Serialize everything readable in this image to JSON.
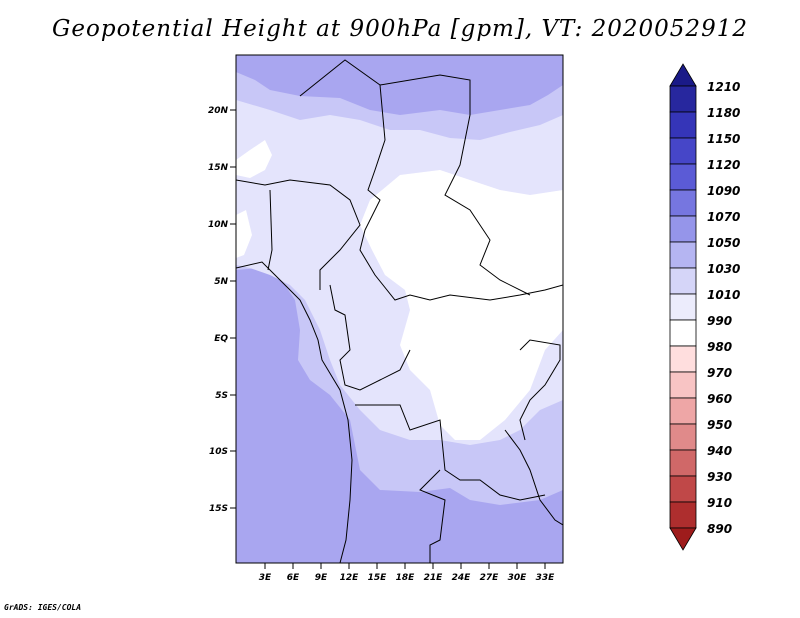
{
  "title": "Geopotential Height at 900hPa [gpm], VT: 2020052912",
  "map": {
    "lat_labels": [
      "20N",
      "15N",
      "10N",
      "5N",
      "EQ",
      "5S",
      "10S",
      "15S"
    ],
    "lon_labels": [
      "3E",
      "6E",
      "9E",
      "12E",
      "15E",
      "18E",
      "21E",
      "24E",
      "27E",
      "30E",
      "33E"
    ],
    "field_colors": {
      "c1050": "#a9a6f0",
      "c1030": "#c8c7f7",
      "c1010": "#e4e4fc",
      "c990": "#ffffff"
    }
  },
  "colorbar": {
    "levels": [
      "1210",
      "1180",
      "1150",
      "1120",
      "1090",
      "1070",
      "1050",
      "1030",
      "1010",
      "990",
      "980",
      "970",
      "960",
      "950",
      "940",
      "930",
      "910",
      "890"
    ],
    "colors": [
      "#1a1a88",
      "#27279e",
      "#3535b8",
      "#4646c8",
      "#5b5bd6",
      "#7676e0",
      "#9595ea",
      "#b5b5f2",
      "#d5d5f8",
      "#ececfc",
      "#ffffff",
      "#ffdede",
      "#f8c4c4",
      "#eea6a6",
      "#e08a8a",
      "#d06868",
      "#c04848",
      "#ae2e2e",
      "#9e1c1c"
    ]
  },
  "credit": "GrADS: IGES/COLA"
}
